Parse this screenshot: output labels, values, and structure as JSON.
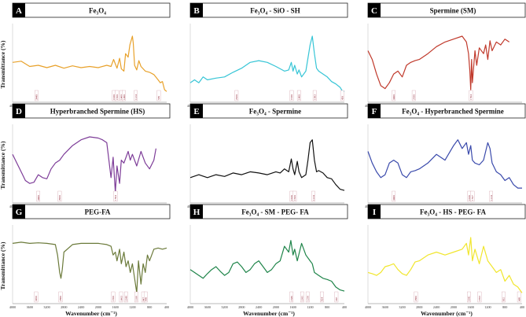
{
  "ylabel": "Transmittance (%)",
  "xlabel": "Wavenumber (cm⁻¹)",
  "chart_data": [
    {
      "type": "line",
      "letter": "A",
      "title": "Fe₃O₄",
      "color": "#e8a12a",
      "xlim": [
        4000,
        400
      ],
      "ylim": [
        0,
        100
      ],
      "x_ticks": [
        4000,
        3600,
        3200,
        2800,
        2400,
        2000,
        1600,
        1200,
        800,
        400
      ],
      "x": [
        4000,
        3800,
        3600,
        3400,
        3200,
        3000,
        2800,
        2600,
        2400,
        2200,
        2000,
        1800,
        1700,
        1640,
        1560,
        1500,
        1460,
        1400,
        1360,
        1300,
        1260,
        1200,
        1180,
        1150,
        1100,
        1050,
        1000,
        900,
        800,
        700,
        600,
        550,
        500,
        450,
        400
      ],
      "y": [
        55,
        57,
        48,
        50,
        46,
        50,
        45,
        49,
        46,
        48,
        46,
        50,
        48,
        60,
        45,
        62,
        44,
        40,
        70,
        64,
        85,
        100,
        88,
        50,
        42,
        58,
        48,
        40,
        38,
        34,
        25,
        20,
        22,
        8,
        5
      ],
      "peaks": [
        3440,
        1630,
        1560,
        1460,
        1400,
        1124,
        585
      ]
    },
    {
      "type": "line",
      "letter": "B",
      "title": "Fe₃O₄ - SiO - SH",
      "color": "#36c5d6",
      "xlim": [
        4000,
        400
      ],
      "ylim": [
        0,
        100
      ],
      "x_ticks": [
        4000,
        3600,
        3200,
        2800,
        2400,
        2000,
        1600,
        1200,
        800,
        400
      ],
      "x": [
        4000,
        3900,
        3800,
        3700,
        3600,
        3400,
        3200,
        3000,
        2800,
        2600,
        2400,
        2200,
        2000,
        1800,
        1700,
        1640,
        1600,
        1560,
        1500,
        1460,
        1400,
        1300,
        1200,
        1150,
        1100,
        1050,
        1000,
        900,
        800,
        700,
        600,
        500,
        450,
        400
      ],
      "y": [
        20,
        25,
        20,
        30,
        25,
        28,
        30,
        38,
        45,
        55,
        58,
        55,
        48,
        40,
        42,
        55,
        40,
        50,
        35,
        42,
        30,
        40,
        85,
        100,
        70,
        45,
        40,
        35,
        30,
        22,
        18,
        12,
        6,
        5
      ],
      "peaks": [
        2920,
        1630,
        1460,
        1093,
        450
      ]
    },
    {
      "type": "line",
      "letter": "C",
      "title": "Spermine (SM)",
      "color": "#c0392b",
      "xlim": [
        4000,
        400
      ],
      "ylim": [
        0,
        100
      ],
      "x_ticks": [
        4000,
        3600,
        3200,
        2800,
        2400,
        2000,
        1600,
        1200,
        800,
        400
      ],
      "x": [
        4000,
        3900,
        3800,
        3700,
        3600,
        3500,
        3400,
        3300,
        3200,
        3100,
        3000,
        2900,
        2800,
        2600,
        2400,
        2200,
        2000,
        1800,
        1700,
        1650,
        1620,
        1600,
        1580,
        1560,
        1500,
        1460,
        1400,
        1300,
        1250,
        1200,
        1150,
        1100,
        1000,
        900,
        800,
        700
      ],
      "y": [
        75,
        60,
        35,
        15,
        10,
        20,
        35,
        40,
        30,
        50,
        55,
        58,
        60,
        70,
        82,
        90,
        95,
        100,
        90,
        70,
        40,
        8,
        60,
        20,
        75,
        50,
        80,
        70,
        85,
        60,
        92,
        75,
        90,
        85,
        95,
        90
      ],
      "peaks": [
        3400,
        2930,
        1594
      ]
    },
    {
      "type": "line",
      "letter": "D",
      "title": "Hyperbranched Spermine (HS)",
      "color": "#7d3c98",
      "xlim": [
        4000,
        400
      ],
      "ylim": [
        0,
        100
      ],
      "x_ticks": [
        4000,
        3600,
        3200,
        2800,
        2400,
        2000,
        1600,
        1200,
        800,
        400
      ],
      "x": [
        4000,
        3900,
        3800,
        3700,
        3600,
        3500,
        3400,
        3300,
        3200,
        3100,
        3000,
        2900,
        2800,
        2600,
        2400,
        2200,
        2000,
        1900,
        1800,
        1750,
        1700,
        1650,
        1600,
        1560,
        1500,
        1460,
        1400,
        1300,
        1250,
        1200,
        1100,
        1000,
        900,
        800,
        700,
        650
      ],
      "y": [
        70,
        55,
        40,
        25,
        20,
        22,
        35,
        30,
        28,
        45,
        55,
        60,
        70,
        85,
        95,
        100,
        98,
        95,
        90,
        60,
        30,
        65,
        5,
        50,
        20,
        60,
        55,
        75,
        60,
        70,
        50,
        75,
        55,
        45,
        60,
        80
      ],
      "peaks": [
        3400,
        2900,
        1594
      ]
    },
    {
      "type": "line",
      "letter": "E",
      "title": "Fe₃O₄ - Spermine",
      "color": "#111111",
      "xlim": [
        4000,
        400
      ],
      "ylim": [
        0,
        100
      ],
      "x_ticks": [
        4000,
        3600,
        3200,
        2800,
        2400,
        2000,
        1600,
        1200,
        800,
        400
      ],
      "x": [
        4000,
        3800,
        3600,
        3400,
        3200,
        3000,
        2800,
        2600,
        2400,
        2200,
        2000,
        1900,
        1800,
        1700,
        1640,
        1600,
        1560,
        1500,
        1460,
        1400,
        1300,
        1250,
        1200,
        1150,
        1100,
        1050,
        1000,
        900,
        800,
        700,
        600,
        500,
        400
      ],
      "y": [
        30,
        35,
        30,
        35,
        32,
        38,
        35,
        40,
        38,
        35,
        40,
        38,
        45,
        40,
        62,
        45,
        35,
        58,
        40,
        30,
        35,
        60,
        90,
        95,
        60,
        40,
        42,
        38,
        30,
        28,
        18,
        10,
        8
      ],
      "peaks": [
        1630,
        1560,
        1124
      ]
    },
    {
      "type": "line",
      "letter": "F",
      "title": "Fe₃O₄ - Hyperbranched Spermine",
      "color": "#3949ab",
      "xlim": [
        4000,
        400
      ],
      "ylim": [
        0,
        100
      ],
      "x_ticks": [
        4000,
        3600,
        3200,
        2800,
        2400,
        2000,
        1600,
        1200,
        800,
        400
      ],
      "x": [
        4000,
        3900,
        3800,
        3700,
        3600,
        3500,
        3400,
        3300,
        3200,
        3100,
        3000,
        2900,
        2800,
        2600,
        2400,
        2200,
        2000,
        1900,
        1800,
        1700,
        1650,
        1600,
        1560,
        1500,
        1400,
        1300,
        1200,
        1150,
        1100,
        1000,
        900,
        800,
        700,
        600,
        500,
        400
      ],
      "y": [
        75,
        55,
        40,
        30,
        35,
        55,
        60,
        55,
        35,
        30,
        40,
        42,
        45,
        55,
        70,
        60,
        85,
        95,
        80,
        90,
        70,
        85,
        60,
        55,
        52,
        60,
        90,
        80,
        55,
        40,
        35,
        25,
        30,
        18,
        12,
        12
      ],
      "peaks": [
        3400,
        1630,
        1557,
        1124
      ]
    },
    {
      "type": "line",
      "letter": "G",
      "title": "PEG-FA",
      "color": "#6b7a3a",
      "xlim": [
        4000,
        400
      ],
      "ylim": [
        0,
        100
      ],
      "x_ticks": [
        4000,
        3600,
        3200,
        2800,
        2400,
        2000,
        1600,
        1200,
        800,
        400
      ],
      "x": [
        4000,
        3800,
        3600,
        3400,
        3200,
        3000,
        2950,
        2900,
        2870,
        2840,
        2800,
        2600,
        2400,
        2200,
        2000,
        1800,
        1700,
        1650,
        1600,
        1560,
        1500,
        1460,
        1400,
        1350,
        1300,
        1250,
        1200,
        1150,
        1100,
        1060,
        1000,
        950,
        900,
        850,
        800,
        700,
        600,
        500,
        400
      ],
      "y": [
        90,
        92,
        90,
        91,
        90,
        88,
        70,
        40,
        30,
        45,
        75,
        88,
        90,
        90,
        90,
        88,
        85,
        70,
        75,
        60,
        80,
        55,
        75,
        50,
        60,
        40,
        55,
        30,
        5,
        60,
        20,
        55,
        40,
        70,
        60,
        80,
        82,
        80,
        82
      ],
      "peaks": [
        3450,
        2880,
        1650,
        1463,
        1348,
        1108,
        947,
        890
      ]
    },
    {
      "type": "line",
      "letter": "H",
      "title": "Fe₃O₄ - SM - PEG- FA",
      "color": "#1e8449",
      "xlim": [
        4000,
        400
      ],
      "ylim": [
        0,
        100
      ],
      "x_ticks": [
        4000,
        3600,
        3200,
        2800,
        2400,
        2000,
        1600,
        1200,
        800,
        400
      ],
      "x": [
        4000,
        3900,
        3800,
        3700,
        3600,
        3500,
        3400,
        3300,
        3200,
        3100,
        3000,
        2900,
        2800,
        2700,
        2600,
        2500,
        2400,
        2300,
        2200,
        2100,
        2000,
        1900,
        1800,
        1700,
        1650,
        1600,
        1560,
        1500,
        1400,
        1300,
        1200,
        1150,
        1100,
        1000,
        900,
        800,
        700,
        600,
        500,
        400
      ],
      "y": [
        45,
        40,
        35,
        30,
        38,
        45,
        50,
        42,
        35,
        40,
        55,
        58,
        50,
        40,
        45,
        55,
        60,
        50,
        40,
        45,
        55,
        60,
        85,
        75,
        95,
        70,
        80,
        60,
        90,
        70,
        60,
        55,
        40,
        35,
        30,
        28,
        25,
        15,
        10,
        8
      ],
      "peaks": [
        1636,
        1385,
        1258,
        924,
        587
      ]
    },
    {
      "type": "line",
      "letter": "I",
      "title": "Fe₃O₄ - HS - PEG- FA",
      "color": "#f1e62d",
      "xlim": [
        4000,
        400
      ],
      "ylim": [
        0,
        100
      ],
      "x_ticks": [
        4000,
        3600,
        3200,
        2800,
        2400,
        2000,
        1600,
        1200,
        800,
        400
      ],
      "x": [
        4000,
        3900,
        3800,
        3700,
        3600,
        3500,
        3400,
        3300,
        3200,
        3100,
        3000,
        2900,
        2800,
        2600,
        2400,
        2200,
        2000,
        1800,
        1700,
        1650,
        1600,
        1560,
        1500,
        1400,
        1300,
        1200,
        1100,
        1000,
        900,
        800,
        700,
        600,
        500,
        450,
        400
      ],
      "y": [
        40,
        38,
        35,
        40,
        50,
        52,
        55,
        45,
        38,
        35,
        45,
        58,
        60,
        70,
        75,
        70,
        75,
        80,
        90,
        70,
        100,
        60,
        80,
        55,
        85,
        60,
        50,
        40,
        45,
        25,
        35,
        20,
        15,
        10,
        5
      ],
      "peaks": [
        2880,
        1641,
        1393,
        832,
        469
      ]
    }
  ]
}
